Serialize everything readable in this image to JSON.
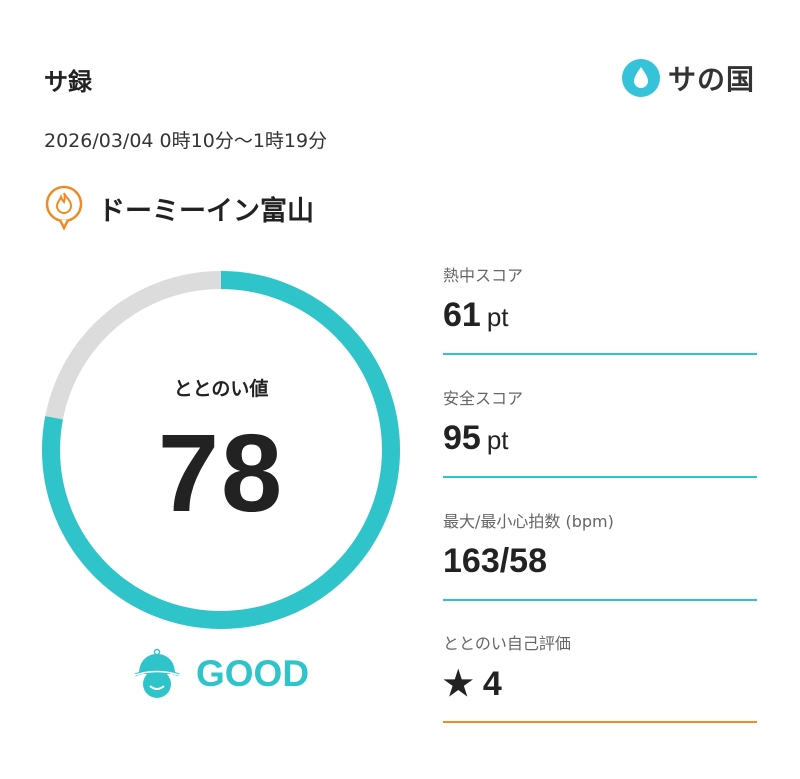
{
  "header": {
    "title": "サ録",
    "logo_text": "サの国"
  },
  "session": {
    "datetime": "2026/03/04 0時10分〜1時19分",
    "facility": "ドーミーイン富山"
  },
  "gauge": {
    "label": "ととのい値",
    "value": "78",
    "max": 100,
    "rating": "GOOD",
    "color_fill": "#2ec4c9",
    "color_track": "#dcdcdc"
  },
  "stats": [
    {
      "label": "熱中スコア",
      "value": "61",
      "unit": "pt"
    },
    {
      "label": "安全スコア",
      "value": "95",
      "unit": "pt"
    },
    {
      "label": "最大/最小心拍数 (bpm)",
      "value": "163/58",
      "unit": ""
    },
    {
      "label": "ととのい自己評価",
      "value": "★ 4",
      "unit": ""
    }
  ],
  "colors": {
    "accent": "#2ec4c9",
    "orange": "#f08a24"
  }
}
